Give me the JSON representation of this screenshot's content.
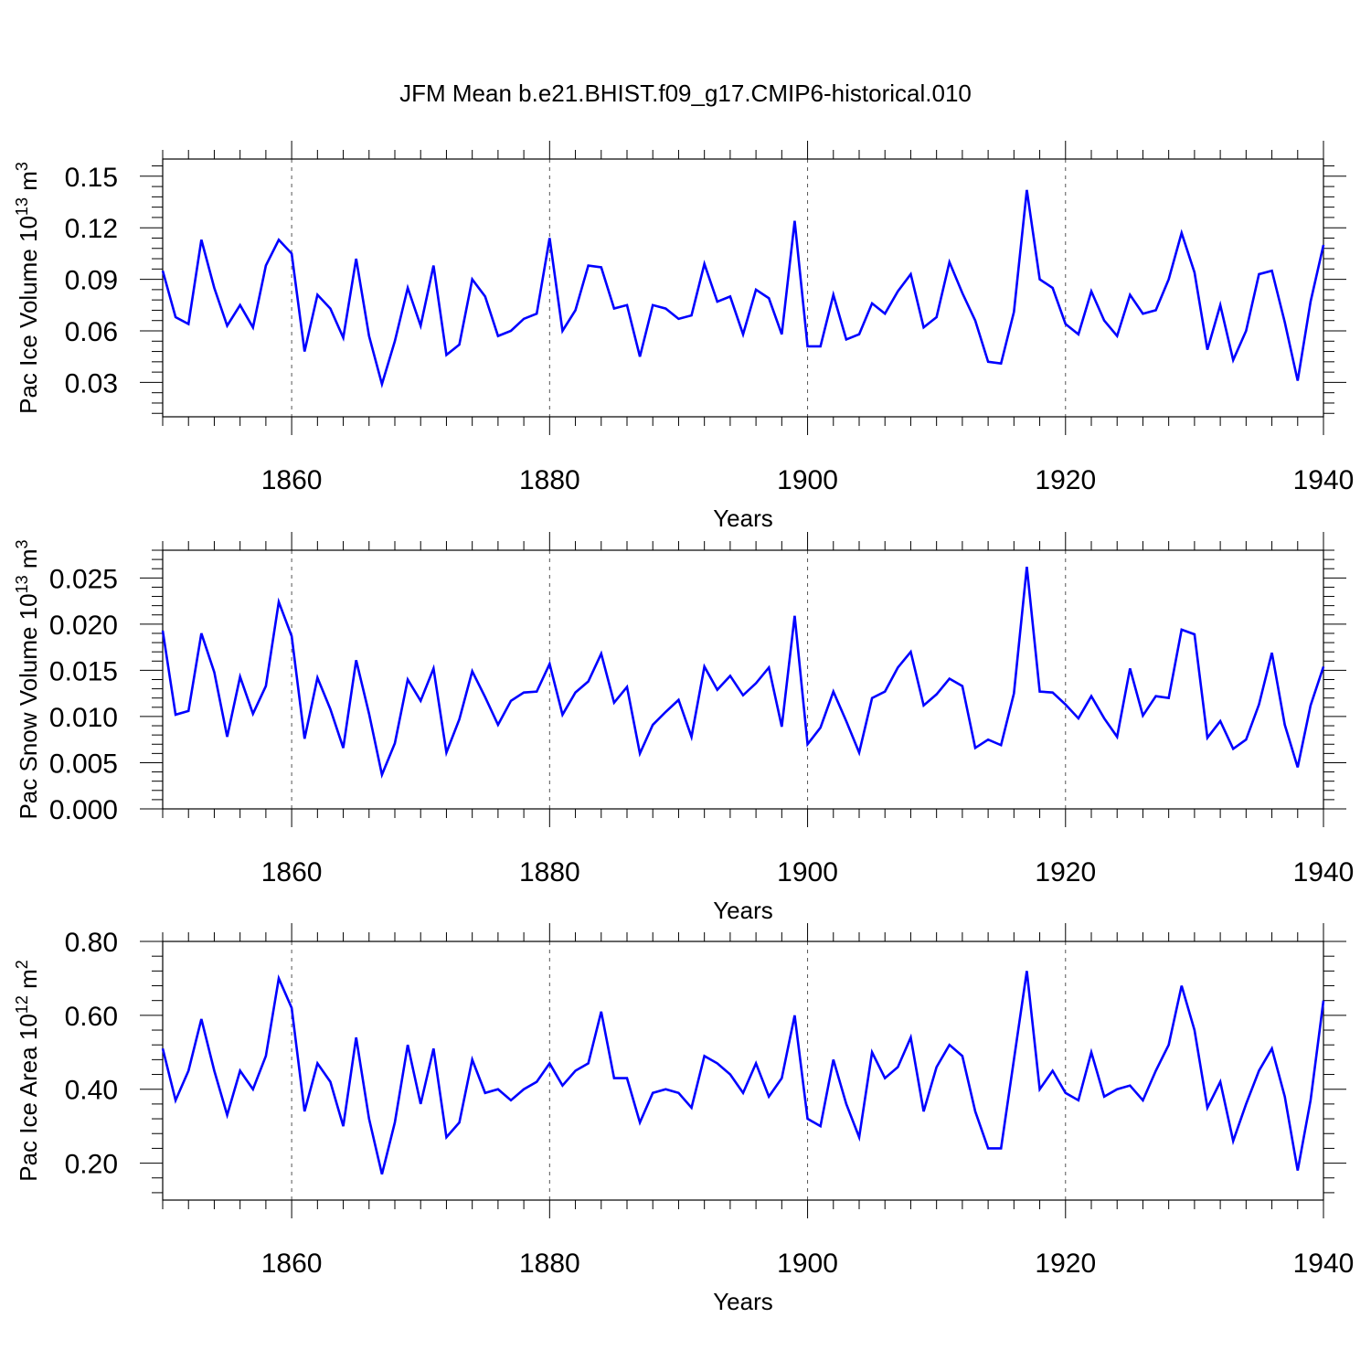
{
  "title": "JFM Mean b.e21.BHIST.f09_g17.CMIP6-historical.010",
  "colors": {
    "line": "#0000ff",
    "axis": "#000000",
    "grid": "#555555"
  },
  "chart_data": [
    {
      "type": "line",
      "ylabel": "Pac Ice Volume 10",
      "ylabel_exp": "13",
      "ylabel_unit": " m",
      "ylabel_unit_exp": "3",
      "xlabel": "Years",
      "xlim": [
        1850,
        1940
      ],
      "ylim": [
        0.01,
        0.16
      ],
      "yticks": [
        0.03,
        0.06,
        0.09,
        0.12,
        0.15
      ],
      "ytick_labels": [
        "0.03",
        "0.06",
        "0.09",
        "0.12",
        "0.15"
      ],
      "xticks": [
        1860,
        1880,
        1900,
        1920,
        1940
      ],
      "xtick_labels": [
        "1860",
        "1880",
        "1900",
        "1920",
        "1940"
      ],
      "grid": "vertical dashed at major x ticks",
      "x_start": 1850,
      "values": [
        0.095,
        0.068,
        0.064,
        0.113,
        0.085,
        0.063,
        0.075,
        0.062,
        0.098,
        0.113,
        0.105,
        0.048,
        0.081,
        0.073,
        0.056,
        0.102,
        0.057,
        0.029,
        0.054,
        0.085,
        0.063,
        0.098,
        0.046,
        0.052,
        0.09,
        0.08,
        0.057,
        0.06,
        0.067,
        0.07,
        0.114,
        0.06,
        0.072,
        0.098,
        0.097,
        0.073,
        0.075,
        0.045,
        0.075,
        0.073,
        0.067,
        0.069,
        0.099,
        0.077,
        0.08,
        0.058,
        0.084,
        0.079,
        0.058,
        0.124,
        0.051,
        0.051,
        0.081,
        0.055,
        0.058,
        0.076,
        0.07,
        0.083,
        0.093,
        0.062,
        0.068,
        0.1,
        0.082,
        0.066,
        0.042,
        0.041,
        0.071,
        0.142,
        0.09,
        0.085,
        0.064,
        0.058,
        0.083,
        0.066,
        0.057,
        0.081,
        0.07,
        0.072,
        0.09,
        0.117,
        0.094,
        0.049,
        0.075,
        0.043,
        0.06,
        0.093,
        0.095,
        0.065,
        0.031,
        0.077,
        0.11
      ]
    },
    {
      "type": "line",
      "ylabel": "Pac Snow Volume 10",
      "ylabel_exp": "13",
      "ylabel_unit": " m",
      "ylabel_unit_exp": "3",
      "xlabel": "Years",
      "xlim": [
        1850,
        1940
      ],
      "ylim": [
        0.0,
        0.028
      ],
      "yticks": [
        0.0,
        0.005,
        0.01,
        0.015,
        0.02,
        0.025
      ],
      "ytick_labels": [
        "0.000",
        "0.005",
        "0.010",
        "0.015",
        "0.020",
        "0.025"
      ],
      "xticks": [
        1860,
        1880,
        1900,
        1920,
        1940
      ],
      "xtick_labels": [
        "1860",
        "1880",
        "1900",
        "1920",
        "1940"
      ],
      "grid": "vertical dashed at major x ticks",
      "x_start": 1850,
      "values": [
        0.0193,
        0.0102,
        0.0106,
        0.019,
        0.0148,
        0.0078,
        0.0143,
        0.0103,
        0.0133,
        0.0224,
        0.0187,
        0.0076,
        0.0142,
        0.0108,
        0.0066,
        0.0161,
        0.0103,
        0.0037,
        0.0071,
        0.014,
        0.0117,
        0.0152,
        0.0061,
        0.0097,
        0.0149,
        0.0121,
        0.0091,
        0.0117,
        0.0126,
        0.0127,
        0.0157,
        0.0102,
        0.0126,
        0.0138,
        0.0168,
        0.0115,
        0.0132,
        0.006,
        0.0091,
        0.0105,
        0.0118,
        0.0078,
        0.0154,
        0.0129,
        0.0144,
        0.0123,
        0.0136,
        0.0153,
        0.0089,
        0.0209,
        0.007,
        0.0088,
        0.0127,
        0.0095,
        0.0061,
        0.012,
        0.0127,
        0.0153,
        0.017,
        0.0112,
        0.0124,
        0.0141,
        0.0133,
        0.0066,
        0.0075,
        0.0069,
        0.0125,
        0.0262,
        0.0127,
        0.0126,
        0.0113,
        0.0098,
        0.0122,
        0.0098,
        0.0078,
        0.0152,
        0.0101,
        0.0122,
        0.012,
        0.0194,
        0.0189,
        0.0077,
        0.0095,
        0.0065,
        0.0075,
        0.0113,
        0.0169,
        0.0091,
        0.0045,
        0.0112,
        0.0154
      ]
    },
    {
      "type": "line",
      "ylabel": "Pac Ice Area 10",
      "ylabel_exp": "12",
      "ylabel_unit": " m",
      "ylabel_unit_exp": "2",
      "xlabel": "Years",
      "xlim": [
        1850,
        1940
      ],
      "ylim": [
        0.1,
        0.8
      ],
      "yticks": [
        0.2,
        0.4,
        0.6,
        0.8
      ],
      "ytick_labels": [
        "0.20",
        "0.40",
        "0.60",
        "0.80"
      ],
      "xticks": [
        1860,
        1880,
        1900,
        1920,
        1940
      ],
      "xtick_labels": [
        "1860",
        "1880",
        "1900",
        "1920",
        "1940"
      ],
      "grid": "vertical dashed at major x ticks",
      "x_start": 1850,
      "values": [
        0.51,
        0.37,
        0.45,
        0.59,
        0.45,
        0.33,
        0.45,
        0.4,
        0.49,
        0.7,
        0.62,
        0.34,
        0.47,
        0.42,
        0.3,
        0.54,
        0.32,
        0.17,
        0.31,
        0.52,
        0.36,
        0.51,
        0.27,
        0.31,
        0.48,
        0.39,
        0.4,
        0.37,
        0.4,
        0.42,
        0.47,
        0.41,
        0.45,
        0.47,
        0.61,
        0.43,
        0.43,
        0.31,
        0.39,
        0.4,
        0.39,
        0.35,
        0.49,
        0.47,
        0.44,
        0.39,
        0.47,
        0.38,
        0.43,
        0.6,
        0.32,
        0.3,
        0.48,
        0.36,
        0.27,
        0.5,
        0.43,
        0.46,
        0.54,
        0.34,
        0.46,
        0.52,
        0.49,
        0.34,
        0.24,
        0.24,
        0.48,
        0.72,
        0.4,
        0.45,
        0.39,
        0.37,
        0.5,
        0.38,
        0.4,
        0.41,
        0.37,
        0.45,
        0.52,
        0.68,
        0.56,
        0.35,
        0.42,
        0.26,
        0.36,
        0.45,
        0.51,
        0.38,
        0.18,
        0.37,
        0.64
      ]
    }
  ]
}
